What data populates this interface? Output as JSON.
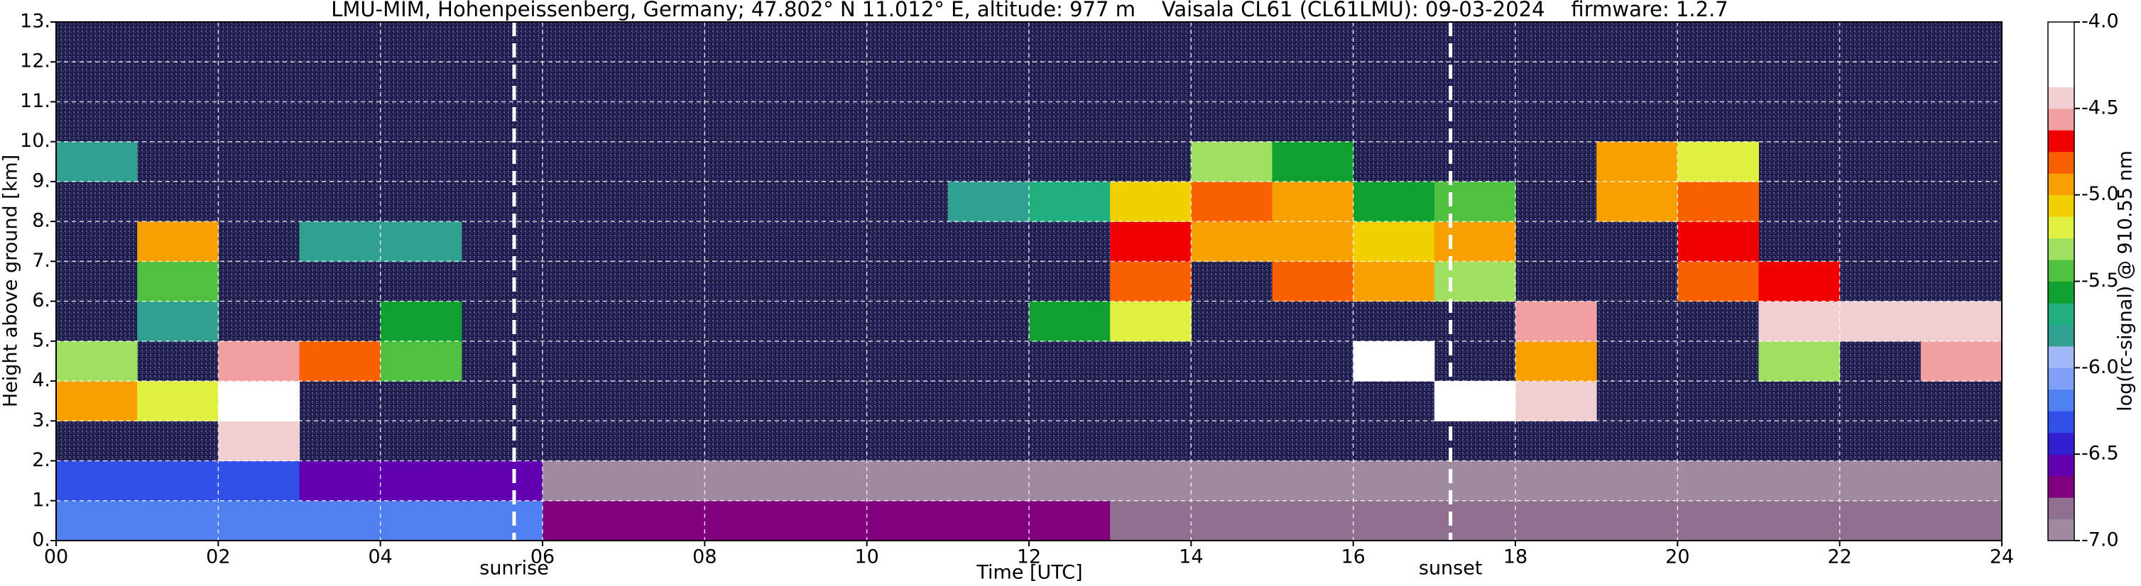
{
  "chart_data": {
    "type": "heatmap",
    "title": "LMU-MIM, Hohenpeissenberg, Germany; 47.802° N 11.012° E, altitude: 977 m    Vaisala CL61 (CL61LMU): 09-03-2024    firmware: 1.2.7",
    "xlabel": "Time [UTC]",
    "ylabel": "Height above ground [km]",
    "colorbar_label": "log(rc-signal) @ 910.55 nm",
    "xlim": [
      0,
      24
    ],
    "ylim": [
      0,
      13
    ],
    "zlim": [
      -7,
      -4
    ],
    "xticks": [
      {
        "value": 0,
        "label": "00"
      },
      {
        "value": 2,
        "label": "02"
      },
      {
        "value": 4,
        "label": "04"
      },
      {
        "value": 6,
        "label": "06"
      },
      {
        "value": 8,
        "label": "08"
      },
      10,
      12,
      14,
      16,
      18,
      20,
      22,
      24
    ],
    "yticks": [
      {
        "value": 0,
        "label": "0."
      },
      {
        "value": 1,
        "label": "1."
      },
      {
        "value": 2,
        "label": "2."
      },
      {
        "value": 3,
        "label": "3."
      },
      {
        "value": 4,
        "label": "4."
      },
      {
        "value": 5,
        "label": "5."
      },
      {
        "value": 6,
        "label": "6."
      },
      {
        "value": 7,
        "label": "7."
      },
      {
        "value": 8,
        "label": "8."
      },
      {
        "value": 9,
        "label": "9."
      },
      {
        "value": 10,
        "label": "10."
      },
      {
        "value": 11,
        "label": "11."
      },
      {
        "value": 12,
        "label": "12."
      },
      {
        "value": 13,
        "label": "13."
      }
    ],
    "zticks": [
      {
        "value": -4,
        "label": "-4.0"
      },
      -4.5,
      {
        "value": -5,
        "label": "-5.0"
      },
      -5.5,
      {
        "value": -6,
        "label": "-6.0"
      },
      -6.5,
      {
        "value": -7,
        "label": "-7.0"
      }
    ],
    "grid": true,
    "colormap": [
      "#a08aa0",
      "#907090",
      "#800080",
      "#6000b0",
      "#3020d0",
      "#3050e8",
      "#5080f0",
      "#80a0f8",
      "#a0b8f8",
      "#30a090",
      "#20b080",
      "#10a030",
      "#50c040",
      "#a0e060",
      "#e0f040",
      "#f0d000",
      "#f8a000",
      "#f86000",
      "#f00000",
      "#f0a0a0",
      "#f0d0d0",
      "#ffffff",
      "#ffffff",
      "#ffffff"
    ],
    "annotations": [
      {
        "text": "sunrise",
        "x": 5.65
      },
      {
        "text": "sunset",
        "x": 17.2
      }
    ],
    "z": [
      [
        -6.2,
        -6.2,
        -6.2,
        -6.2,
        -6.2,
        -6.2,
        -6.7,
        -6.7,
        -6.7,
        -6.7,
        -6.7,
        -6.7,
        -6.7,
        -6.8,
        -6.8,
        -6.8,
        -6.8,
        -6.8,
        -6.8,
        -6.8,
        -6.8,
        -6.8,
        -6.8,
        -6.8
      ],
      [
        -6.3,
        -6.3,
        -6.3,
        -6.6,
        -6.6,
        -6.6,
        -6.9,
        -6.9,
        -6.9,
        -6.9,
        -6.9,
        -6.9,
        -6.9,
        -6.9,
        -6.9,
        -6.9,
        -6.9,
        -6.9,
        -6.9,
        -6.9,
        -6.9,
        -6.9,
        -6.9,
        -6.9
      ],
      [
        null,
        null,
        -4.5,
        null,
        null,
        null,
        null,
        null,
        null,
        null,
        null,
        null,
        null,
        null,
        null,
        null,
        null,
        null,
        null,
        null,
        null,
        null,
        null,
        null
      ],
      [
        -5.0,
        -5.2,
        -4.3,
        null,
        null,
        null,
        null,
        null,
        null,
        null,
        null,
        null,
        null,
        null,
        null,
        null,
        null,
        -4.2,
        -4.4,
        null,
        null,
        null,
        null,
        null
      ],
      [
        -5.3,
        null,
        -4.6,
        -4.8,
        -5.5,
        null,
        null,
        null,
        null,
        null,
        null,
        null,
        null,
        null,
        null,
        null,
        -4.2,
        null,
        -5.0,
        null,
        null,
        -5.3,
        null,
        -4.6
      ],
      [
        null,
        -5.8,
        null,
        null,
        -5.6,
        null,
        null,
        null,
        null,
        null,
        null,
        null,
        -5.6,
        -5.2,
        null,
        null,
        null,
        null,
        -4.6,
        null,
        null,
        -4.5,
        -4.4,
        -4.5
      ],
      [
        null,
        -5.5,
        null,
        null,
        null,
        null,
        null,
        null,
        null,
        null,
        null,
        null,
        null,
        -4.8,
        null,
        -4.8,
        -4.9,
        -5.3,
        null,
        null,
        -4.8,
        -4.7,
        null,
        null
      ],
      [
        null,
        -5.0,
        null,
        -5.8,
        -5.8,
        null,
        null,
        null,
        null,
        null,
        null,
        null,
        null,
        -4.7,
        -5.0,
        -4.9,
        -5.1,
        -5.0,
        null,
        null,
        -4.7,
        null,
        null,
        null
      ],
      [
        null,
        null,
        null,
        null,
        null,
        null,
        null,
        null,
        null,
        null,
        null,
        -5.8,
        -5.7,
        -5.1,
        -4.8,
        -4.9,
        -5.6,
        -5.4,
        null,
        -4.9,
        -4.8,
        null,
        null,
        null
      ],
      [
        -5.8,
        null,
        null,
        null,
        null,
        null,
        null,
        null,
        null,
        null,
        null,
        null,
        null,
        null,
        -5.3,
        -5.6,
        null,
        null,
        null,
        -5.0,
        -5.2,
        null,
        null,
        null
      ],
      [
        null,
        null,
        null,
        null,
        null,
        null,
        null,
        null,
        null,
        null,
        null,
        null,
        null,
        null,
        null,
        null,
        null,
        null,
        null,
        null,
        null,
        null,
        null,
        null
      ],
      [
        null,
        null,
        null,
        null,
        null,
        null,
        null,
        null,
        null,
        null,
        null,
        null,
        null,
        null,
        null,
        null,
        null,
        null,
        null,
        null,
        null,
        null,
        null,
        null
      ],
      [
        null,
        null,
        null,
        null,
        null,
        null,
        null,
        null,
        null,
        null,
        null,
        null,
        null,
        null,
        null,
        null,
        null,
        null,
        null,
        null,
        null,
        null,
        null,
        null
      ]
    ]
  }
}
